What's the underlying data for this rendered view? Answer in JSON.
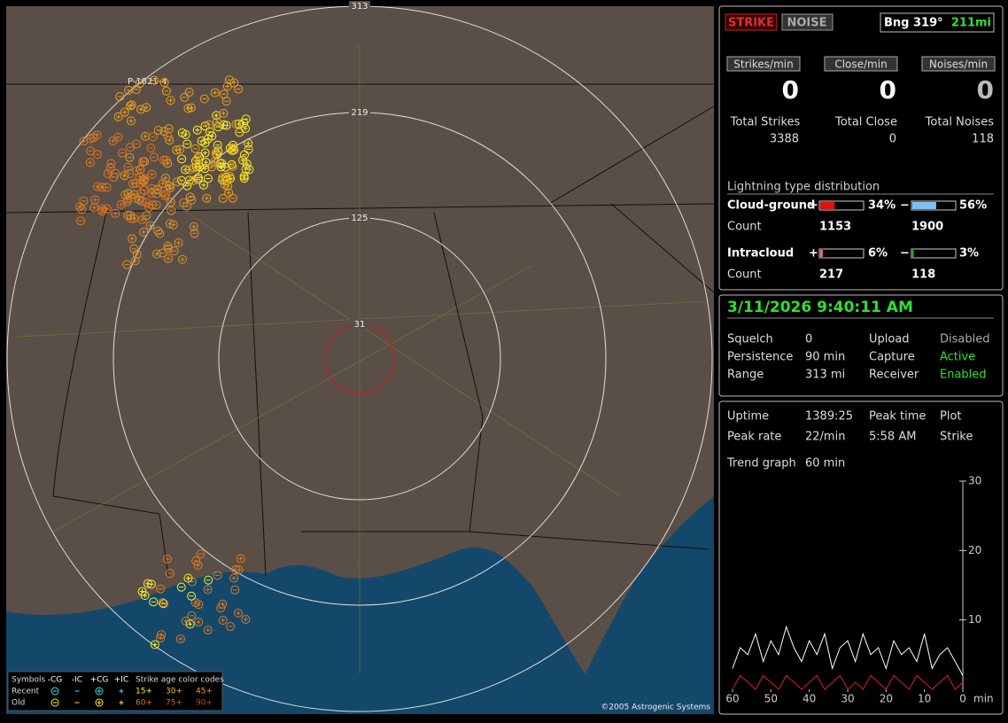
{
  "map": {
    "rings": [
      "313",
      "219",
      "125",
      "31"
    ],
    "site_label": "P-1821-4",
    "copyright": "©2005 Astrogenic Systems",
    "legend": {
      "symbols_label": "Symbols",
      "headers": [
        "-CG",
        "-IC",
        "+CG",
        "+IC"
      ],
      "rows": [
        "Recent",
        "Old"
      ],
      "age_title": "Strike age color codes",
      "ages": [
        [
          "15+",
          "30+",
          "45+"
        ],
        [
          "60+",
          "75+",
          "90+"
        ]
      ]
    }
  },
  "status": {
    "strike": "STRIKE",
    "noise": "NOISE",
    "bearing": "Bng 319°",
    "distance": "211mi"
  },
  "rates": [
    {
      "label": "Strikes/min",
      "value": 0
    },
    {
      "label": "Close/min",
      "value": 0
    },
    {
      "label": "Noises/min",
      "value": 0
    }
  ],
  "totals": [
    {
      "label": "Total Strikes",
      "value": 3388
    },
    {
      "label": "Total Close",
      "value": 0
    },
    {
      "label": "Total Noises",
      "value": 118
    }
  ],
  "distribution": {
    "title": "Lightning type distribution",
    "count_label": "Count",
    "rows": [
      {
        "name": "Cloud-ground",
        "pos": {
          "sign": "+",
          "percent": {
            "value": 34,
            "label": "34%"
          },
          "count": 1153,
          "color": "#e01010"
        },
        "neg": {
          "sign": "−",
          "percent": {
            "value": 56,
            "label": "56%"
          },
          "count": 1900,
          "color": "#80c0f0"
        }
      },
      {
        "name": "Intracloud",
        "pos": {
          "sign": "+",
          "percent": {
            "value": 6,
            "label": "6%"
          },
          "count": 217,
          "color": "#e070a0"
        },
        "neg": {
          "sign": "−",
          "percent": {
            "value": 3,
            "label": "3%"
          },
          "count": 118,
          "color": "#20c020"
        }
      }
    ]
  },
  "clock": "3/11/2026 9:40:11 AM",
  "settings": [
    [
      "Squelch",
      "0",
      "Upload",
      "Disabled"
    ],
    [
      "Persistence",
      "90 min",
      "Capture",
      "Active"
    ],
    [
      "Range",
      "313 mi",
      "Receiver",
      "Enabled"
    ]
  ],
  "stats": [
    [
      "Uptime",
      "1389:25",
      "Peak time",
      "Plot"
    ],
    [
      "Peak rate",
      "22/min",
      "5:58 AM",
      "Strike"
    ],
    [
      "Trend graph",
      "60 min"
    ]
  ],
  "trend": {
    "type": "line",
    "x": [
      60,
      58,
      56,
      54,
      52,
      50,
      48,
      46,
      44,
      42,
      40,
      38,
      36,
      34,
      32,
      30,
      28,
      26,
      24,
      22,
      20,
      18,
      16,
      14,
      12,
      10,
      8,
      6,
      4,
      2,
      0
    ],
    "xlim": [
      60,
      0
    ],
    "xticks": [
      60,
      50,
      40,
      30,
      20,
      10,
      0
    ],
    "x_unit": "min",
    "ylim": [
      0,
      30
    ],
    "yticks": [
      10,
      20,
      30
    ],
    "series": [
      {
        "name": "Strikes",
        "color": "#ffffff",
        "values": [
          3,
          6,
          5,
          8,
          4,
          7,
          5,
          9,
          6,
          4,
          7,
          5,
          8,
          3,
          6,
          7,
          4,
          8,
          5,
          6,
          3,
          7,
          5,
          6,
          4,
          8,
          3,
          5,
          6,
          4,
          2
        ]
      },
      {
        "name": "Noise",
        "color": "#e02020",
        "values": [
          0,
          2,
          1,
          0,
          2,
          1,
          0,
          2,
          1,
          0,
          1,
          2,
          0,
          1,
          2,
          0,
          1,
          0,
          2,
          1,
          0,
          2,
          1,
          0,
          2,
          1,
          0,
          1,
          2,
          0,
          1
        ]
      }
    ]
  }
}
